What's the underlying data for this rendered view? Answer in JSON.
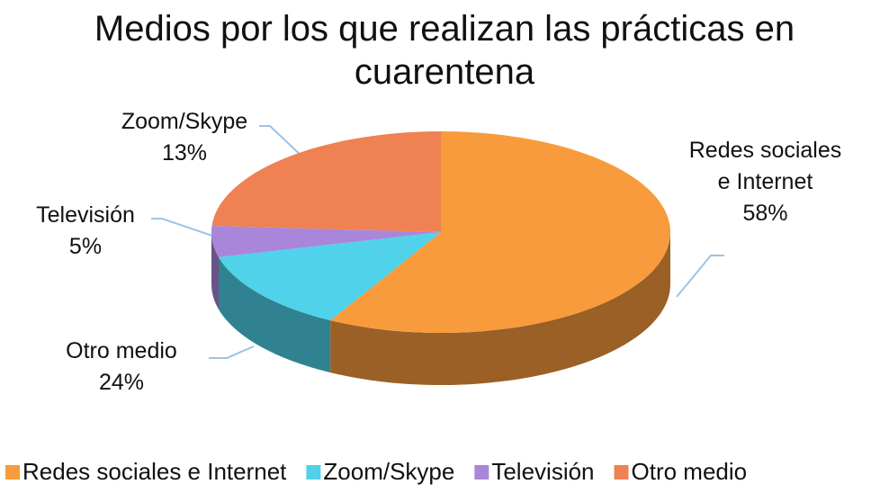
{
  "chart_data": {
    "type": "pie",
    "title": "Medios por los que realizan las prácticas en cuarentena",
    "categories": [
      "Redes sociales e Internet",
      "Zoom/Skype",
      "Televisión",
      "Otro medio"
    ],
    "values": [
      58,
      13,
      5,
      24
    ],
    "value_labels": [
      "58%",
      "13%",
      "5%",
      "24%"
    ],
    "colors": [
      "#f89b3c",
      "#4fd2ea",
      "#a986d9",
      "#ef8152"
    ],
    "legend": "bottom"
  }
}
